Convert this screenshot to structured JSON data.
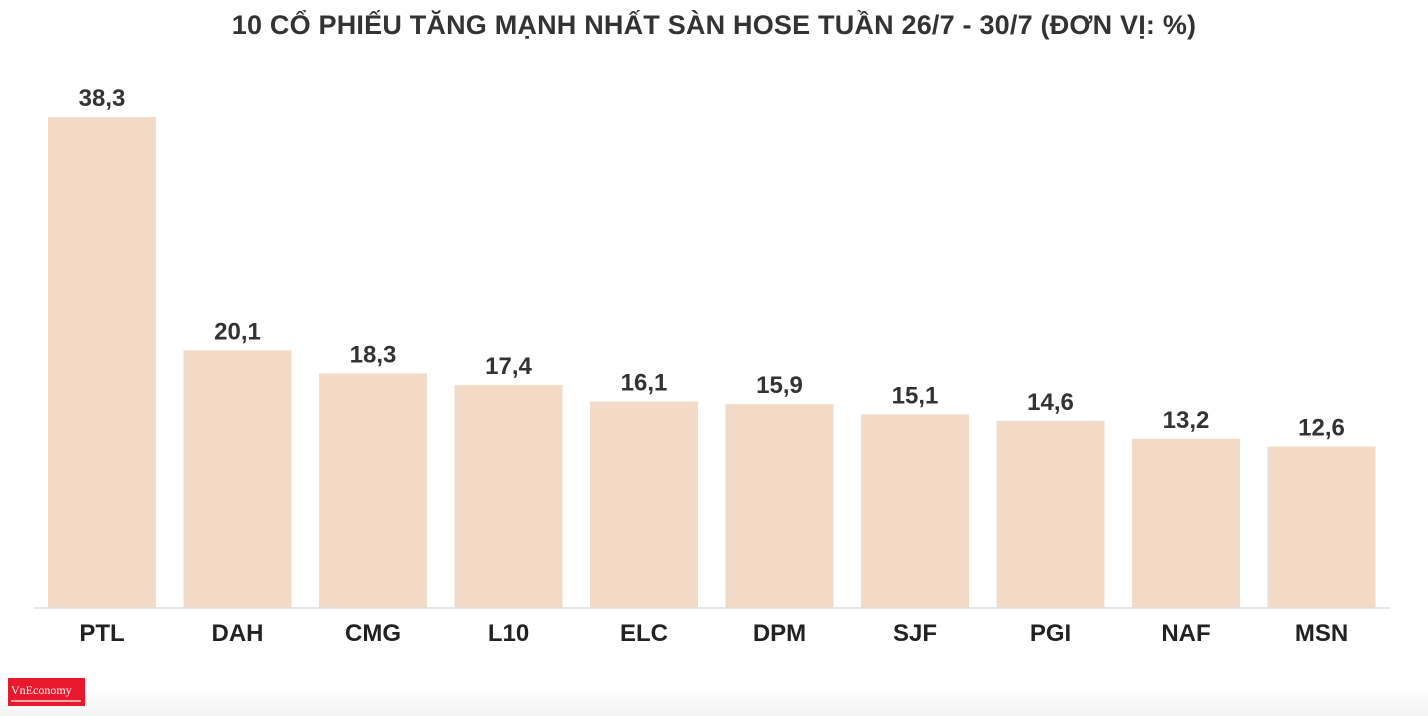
{
  "chart_data": {
    "type": "bar",
    "title": "10 CỔ PHIẾU TĂNG MẠNH NHẤT SÀN HOSE TUẦN 26/7 - 30/7 (ĐƠN VỊ: %)",
    "categories": [
      "PTL",
      "DAH",
      "CMG",
      "L10",
      "ELC",
      "DPM",
      "SJF",
      "PGI",
      "NAF",
      "MSN"
    ],
    "values": [
      38.3,
      20.1,
      18.3,
      17.4,
      16.1,
      15.9,
      15.1,
      14.6,
      13.2,
      12.6
    ],
    "value_labels": [
      "38,3",
      "20,1",
      "18,3",
      "17,4",
      "16,1",
      "15,9",
      "15,1",
      "14,6",
      "13,2",
      "12,6"
    ],
    "ylim": [
      0,
      40
    ],
    "grid": false,
    "legend": "none",
    "bar_color": "#f3dac6"
  },
  "footer": {
    "logo_text": "VnEconomy",
    "logo_color": "#e8192c"
  }
}
